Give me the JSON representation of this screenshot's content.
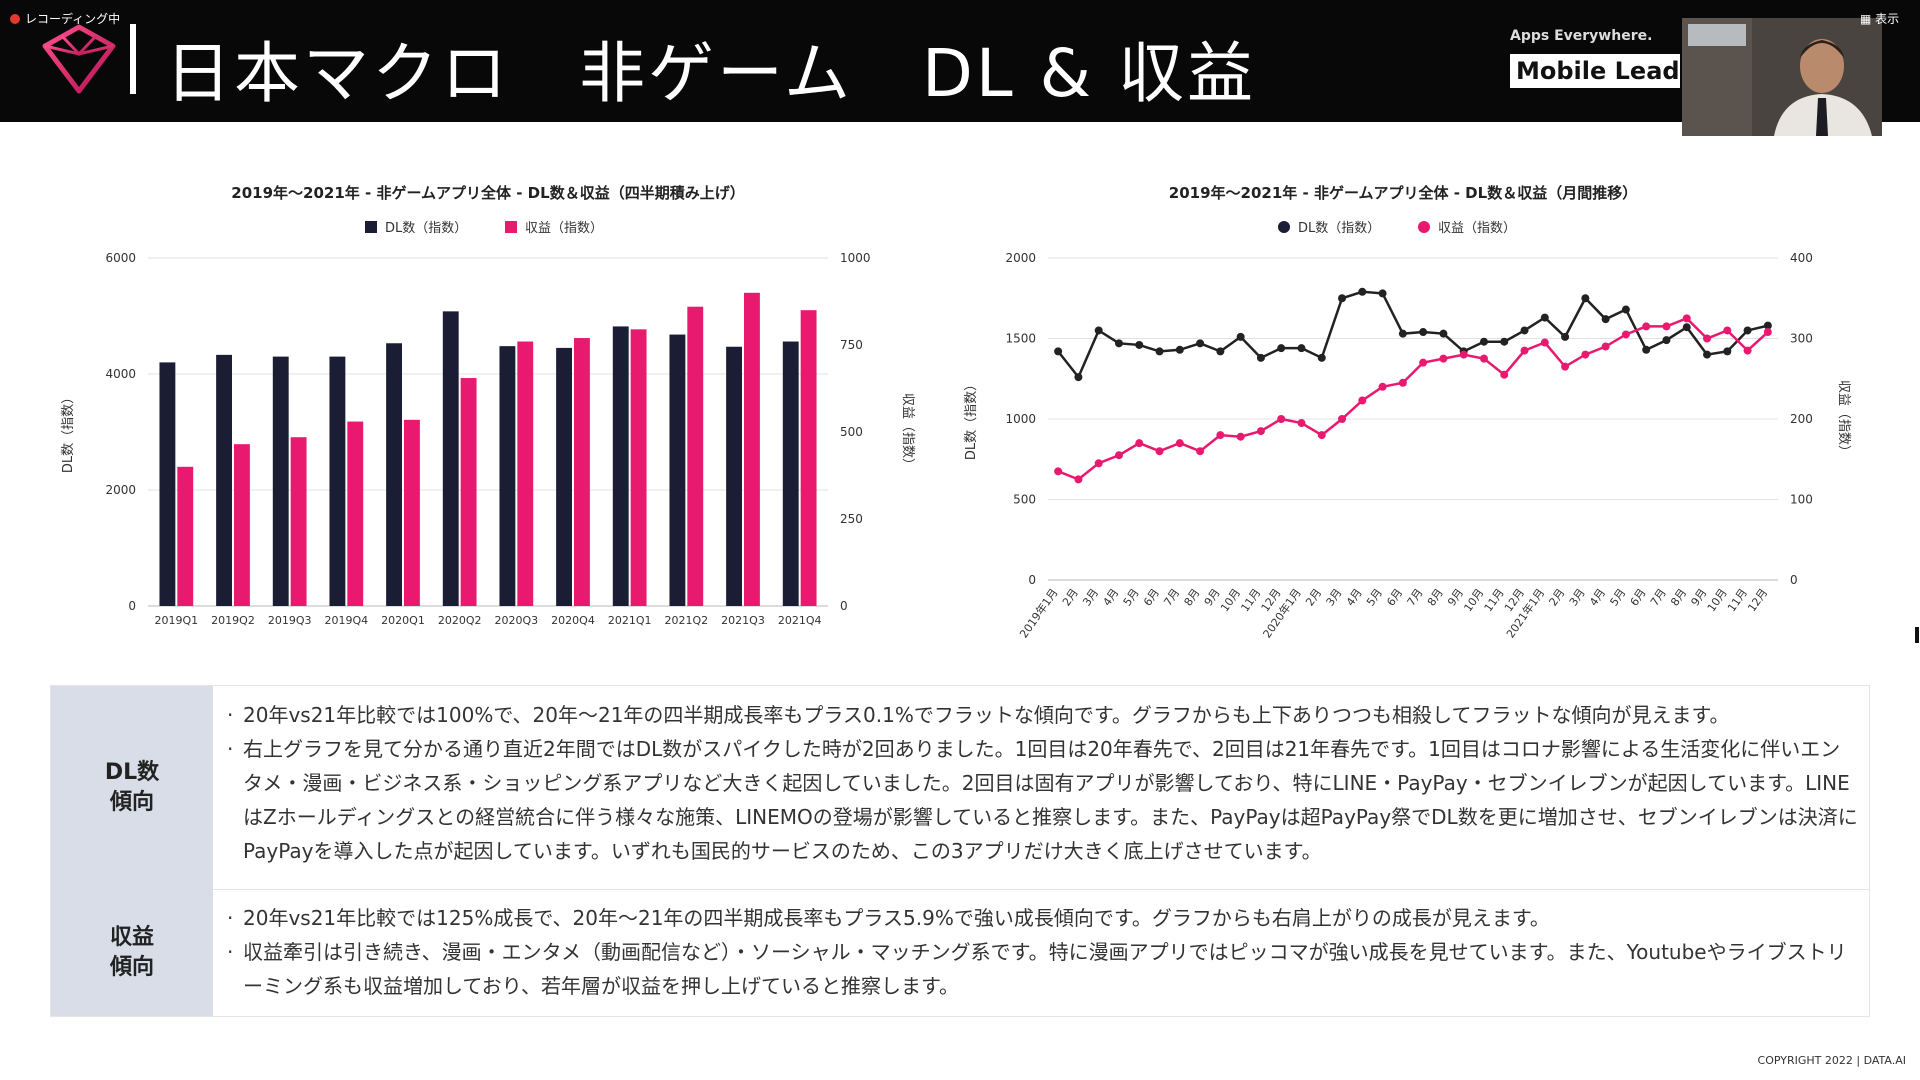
{
  "recording": {
    "label": "レコーディング中"
  },
  "header": {
    "title": "日本マクロ　非ゲーム　DL & 収益",
    "apps_tag": "Apps Everywhere.",
    "mobile_lead": "Mobile Lead"
  },
  "view_button": {
    "label": "表示"
  },
  "colors": {
    "dl": "#1a1d33",
    "rev": "#e8196e"
  },
  "chart_data": [
    {
      "type": "bar",
      "title": "2019年～2021年 - 非ゲームアプリ全体 - DL数＆収益（四半期積み上げ）",
      "legend": [
        "DL数（指数）",
        "収益（指数）"
      ],
      "categories": [
        "2019Q1",
        "2019Q2",
        "2019Q3",
        "2019Q4",
        "2020Q1",
        "2020Q2",
        "2020Q3",
        "2020Q4",
        "2021Q1",
        "2021Q2",
        "2021Q3",
        "2021Q4"
      ],
      "series": [
        {
          "name": "DL数（指数）",
          "axis": "left",
          "values": [
            4200,
            4330,
            4300,
            4300,
            4530,
            5080,
            4480,
            4450,
            4820,
            4680,
            4470,
            4560
          ]
        },
        {
          "name": "収益（指数）",
          "axis": "right",
          "values": [
            400,
            465,
            485,
            530,
            535,
            655,
            760,
            770,
            795,
            860,
            900,
            850
          ]
        }
      ],
      "ylabel_left": "DL数（指数）",
      "ylabel_right": "収益（指数）",
      "ylim_left": [
        0,
        6000
      ],
      "ylim_right": [
        0,
        1000
      ],
      "yticks_left": [
        "0",
        "2000",
        "4000",
        "6000"
      ],
      "yticks_right": [
        "0",
        "250",
        "500",
        "750",
        "1000"
      ]
    },
    {
      "type": "line",
      "title": "2019年～2021年 - 非ゲームアプリ全体 - DL数＆収益（月間推移）",
      "legend": [
        "DL数（指数）",
        "収益（指数）"
      ],
      "categories": [
        "2019年1月",
        "2月",
        "3月",
        "4月",
        "5月",
        "6月",
        "7月",
        "8月",
        "9月",
        "10月",
        "11月",
        "12月",
        "2020年1月",
        "2月",
        "3月",
        "4月",
        "5月",
        "6月",
        "7月",
        "8月",
        "9月",
        "10月",
        "11月",
        "12月",
        "2021年1月",
        "2月",
        "3月",
        "4月",
        "5月",
        "6月",
        "7月",
        "8月",
        "9月",
        "10月",
        "11月",
        "12月"
      ],
      "series": [
        {
          "name": "DL数（指数）",
          "axis": "left",
          "values": [
            1420,
            1260,
            1550,
            1470,
            1460,
            1420,
            1430,
            1470,
            1420,
            1510,
            1380,
            1440,
            1440,
            1380,
            1750,
            1790,
            1780,
            1530,
            1540,
            1530,
            1420,
            1480,
            1480,
            1550,
            1630,
            1510,
            1750,
            1620,
            1680,
            1430,
            1490,
            1570,
            1400,
            1420,
            1550,
            1580
          ]
        },
        {
          "name": "収益（指数）",
          "axis": "right",
          "values": [
            135,
            125,
            145,
            155,
            170,
            160,
            170,
            160,
            180,
            178,
            185,
            200,
            195,
            180,
            200,
            223,
            240,
            245,
            270,
            275,
            280,
            275,
            255,
            285,
            295,
            265,
            280,
            290,
            305,
            315,
            315,
            325,
            300,
            310,
            285,
            308
          ]
        }
      ],
      "ylabel_left": "DL数（指数）",
      "ylabel_right": "収益（指数）",
      "ylim_left": [
        0,
        2000
      ],
      "ylim_right": [
        0,
        400
      ],
      "yticks_left": [
        "0",
        "500",
        "1000",
        "1500",
        "2000"
      ],
      "yticks_right": [
        "0",
        "100",
        "200",
        "300",
        "400"
      ]
    }
  ],
  "table": {
    "rows": [
      {
        "header": "DL数\n傾向",
        "lines": [
          "20年vs21年比較では100%で、20年～21年の四半期成長率もプラス0.1%でフラットな傾向です。グラフからも上下ありつつも相殺してフラットな傾向が見えます。",
          "右上グラフを見て分かる通り直近2年間ではDL数がスパイクした時が2回ありました。1回目は20年春先で、2回目は21年春先です。1回目はコロナ影響による生活変化に伴いエンタメ・漫画・ビジネス系・ショッピング系アプリなど大きく起因していました。2回目は固有アプリが影響しており、特にLINE・PayPay・セブンイレブンが起因しています。LINEはZホールディングスとの経営統合に伴う様々な施策、LINEMOの登場が影響していると推察します。また、PayPayは超PayPay祭でDL数を更に増加させ、セブンイレブンは決済にPayPayを導入した点が起因しています。いずれも国民的サービスのため、この3アプリだけ大きく底上げさせています。"
        ]
      },
      {
        "header": "収益\n傾向",
        "lines": [
          "20年vs21年比較では125%成長で、20年～21年の四半期成長率もプラス5.9%で強い成長傾向です。グラフからも右肩上がりの成長が見えます。",
          "収益牽引は引き続き、漫画・エンタメ（動画配信など）・ソーシャル・マッチング系です。特に漫画アプリではピッコマが強い成長を見せています。また、Youtubeやライブストリーミング系も収益増加しており、若年層が収益を押し上げていると推察します。"
        ]
      }
    ]
  },
  "copyright": "COPYRIGHT 2022 | DATA.AI"
}
